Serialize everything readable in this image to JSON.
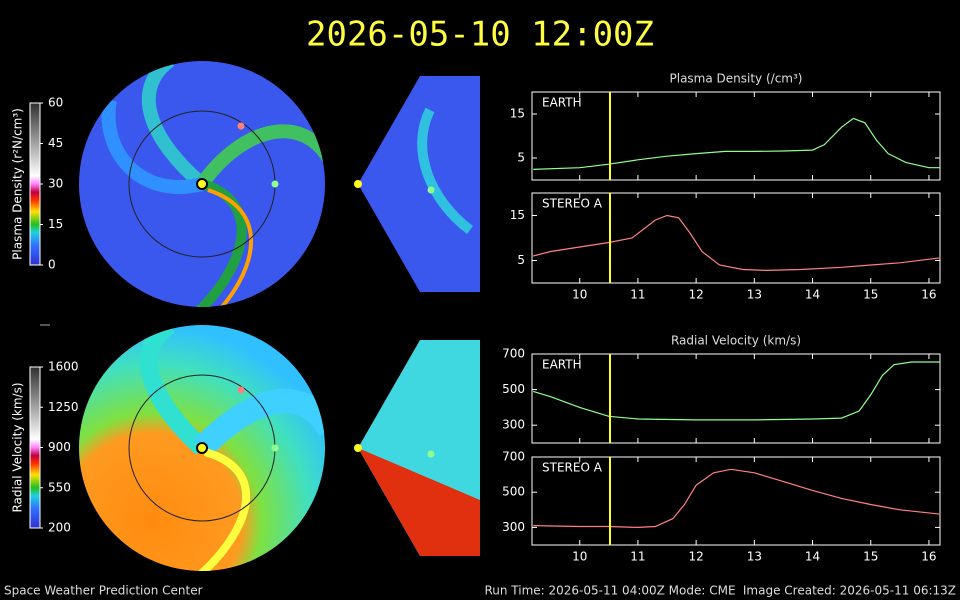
{
  "header": {
    "title": "2026-05-10 12:00Z"
  },
  "footer": {
    "left": "Space Weather Prediction Center",
    "center": "Run Time: 2026-05-11 04:00Z  Mode: CME",
    "right": "Image Created: 2026-05-11 06:13Z"
  },
  "colorbars": [
    {
      "label": "Plasma Density (r²N/cm³)",
      "lim": [
        0,
        60
      ],
      "ticks": [
        0,
        15,
        30,
        45,
        60
      ]
    },
    {
      "label": "Radial Velocity (km/s)",
      "lim": [
        200,
        1600
      ],
      "ticks": [
        200,
        550,
        900,
        1250,
        1600
      ]
    }
  ],
  "chart_data": [
    {
      "type": "line",
      "title": "Plasma Density (/cm³)",
      "marker_x": 10.52,
      "x": [
        9.2,
        10,
        10.5,
        11,
        11.5,
        12,
        12.5,
        13,
        13.5,
        14,
        14.2,
        14.5,
        14.7,
        14.9,
        15.1,
        15.3,
        15.6,
        16,
        16.2
      ],
      "series": [
        {
          "name": "EARTH",
          "color": "#90ff90",
          "values": [
            2.4,
            2.8,
            3.6,
            4.6,
            5.4,
            6.0,
            6.5,
            6.5,
            6.6,
            6.8,
            8,
            12,
            14,
            13,
            9,
            6,
            4,
            2.8,
            2.8
          ]
        }
      ],
      "xlim": [
        9.18,
        16.19
      ],
      "xticks": [
        10,
        11,
        12,
        13,
        14,
        15,
        16
      ],
      "ylim": [
        0,
        20
      ],
      "yticks": [
        5,
        15
      ]
    },
    {
      "type": "line",
      "marker_x": 10.52,
      "x": [
        9.2,
        9.5,
        10,
        10.5,
        10.9,
        11.1,
        11.3,
        11.5,
        11.7,
        11.9,
        12.1,
        12.4,
        12.8,
        13.2,
        13.8,
        14.5,
        15,
        15.5,
        16.2
      ],
      "series": [
        {
          "name": "STEREO A",
          "color": "#ff8080",
          "values": [
            6,
            7,
            8,
            9,
            10,
            12,
            14,
            15,
            14.5,
            11,
            7,
            4,
            3,
            2.8,
            3,
            3.5,
            4,
            4.5,
            5.6
          ]
        }
      ],
      "xlim": [
        9.18,
        16.19
      ],
      "xticks": [
        10,
        11,
        12,
        13,
        14,
        15,
        16
      ],
      "ylim": [
        0,
        20
      ],
      "yticks": [
        5,
        15
      ]
    },
    {
      "type": "line",
      "title": "Radial Velocity (km/s)",
      "marker_x": 10.52,
      "x": [
        9.2,
        9.5,
        10,
        10.5,
        11,
        12,
        13,
        14,
        14.5,
        14.8,
        15,
        15.2,
        15.4,
        15.7,
        16.2
      ],
      "series": [
        {
          "name": "EARTH",
          "color": "#90ff90",
          "values": [
            490,
            460,
            400,
            350,
            335,
            330,
            330,
            335,
            340,
            380,
            470,
            580,
            640,
            655,
            655
          ]
        }
      ],
      "xlim": [
        9.18,
        16.19
      ],
      "xticks": [
        10,
        11,
        12,
        13,
        14,
        15,
        16
      ],
      "ylim": [
        200,
        700
      ],
      "yticks": [
        300,
        500,
        700
      ]
    },
    {
      "type": "line",
      "marker_x": 10.52,
      "x": [
        9.2,
        10,
        10.5,
        11,
        11.3,
        11.6,
        11.8,
        12,
        12.3,
        12.6,
        13,
        13.5,
        14,
        14.5,
        15,
        15.5,
        16.2
      ],
      "series": [
        {
          "name": "STEREO A",
          "color": "#ff8080",
          "values": [
            310,
            305,
            305,
            300,
            305,
            350,
            430,
            540,
            610,
            630,
            610,
            560,
            510,
            465,
            430,
            400,
            375
          ]
        }
      ],
      "xlim": [
        9.18,
        16.19
      ],
      "xticks": [
        10,
        11,
        12,
        13,
        14,
        15,
        16
      ],
      "ylim": [
        200,
        700
      ],
      "yticks": [
        300,
        500,
        700
      ]
    }
  ]
}
